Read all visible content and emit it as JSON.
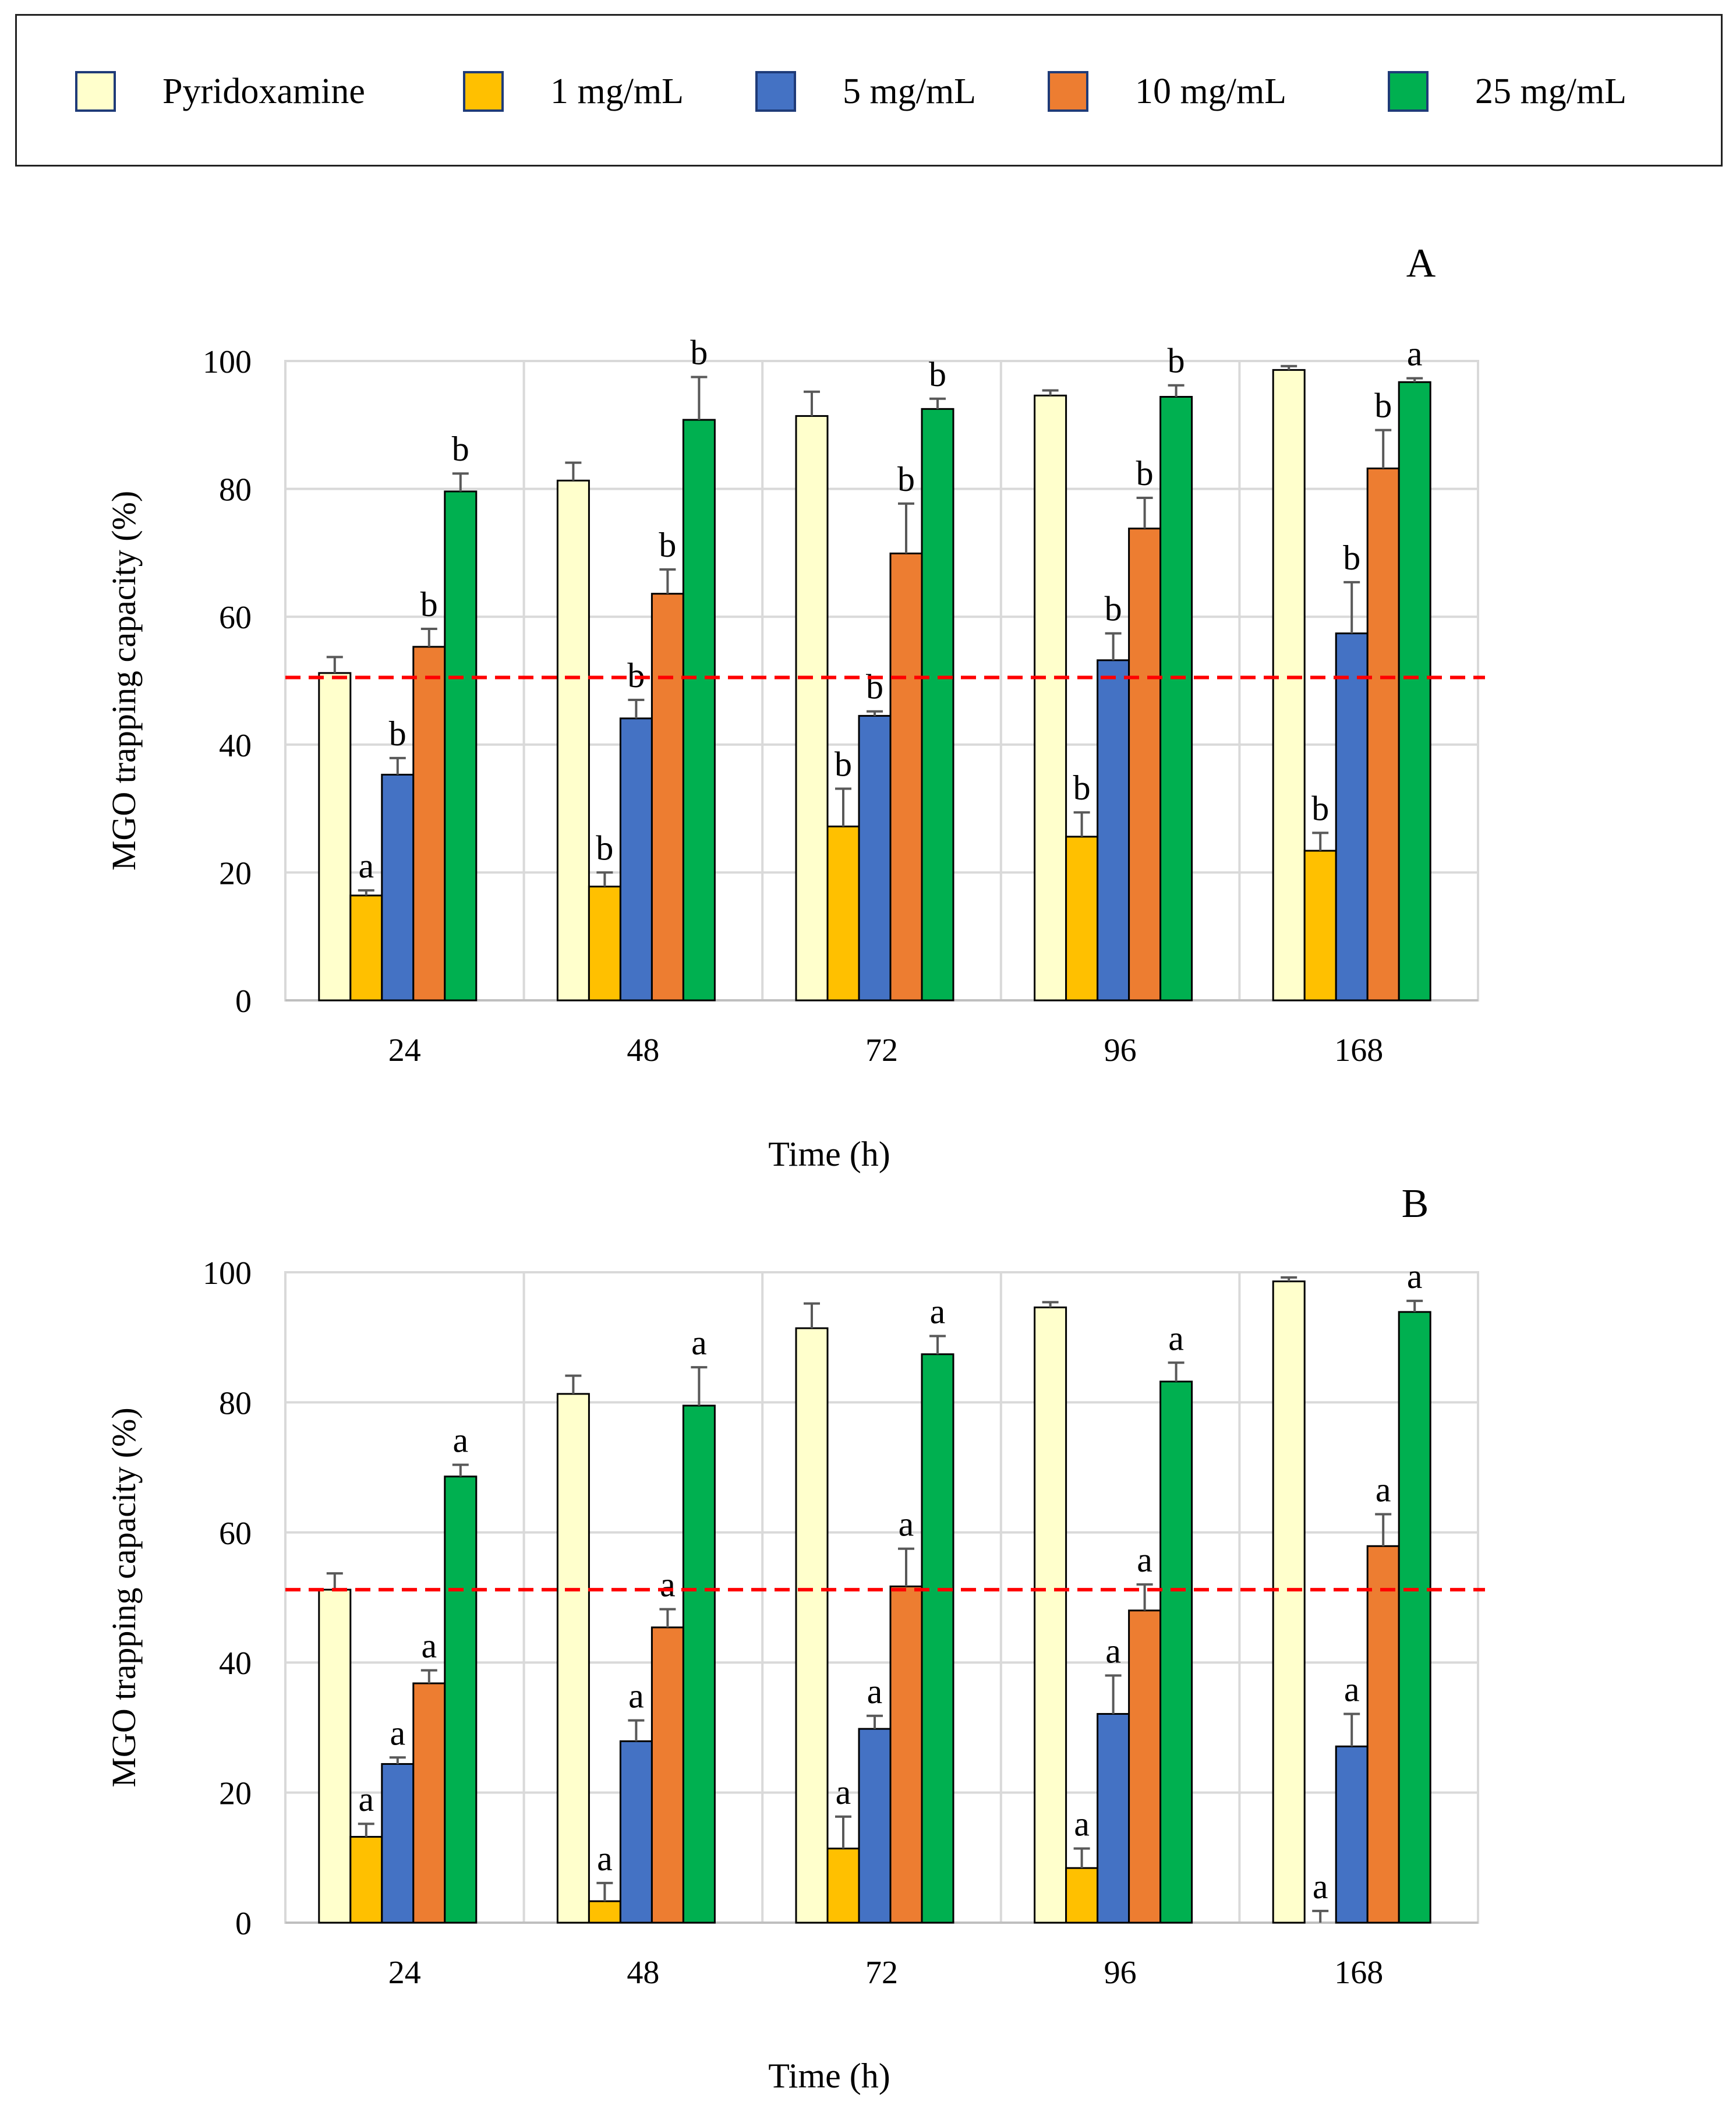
{
  "legend": {
    "items": [
      {
        "label": "Pyridoxamine",
        "color": "#FFFFCC"
      },
      {
        "label": "1 mg/mL",
        "color": "#FFC000"
      },
      {
        "label": "5 mg/mL",
        "color": "#4472C4"
      },
      {
        "label": "10 mg/mL",
        "color": "#ED7D31"
      },
      {
        "label": "25 mg/mL",
        "color": "#00B050"
      }
    ]
  },
  "reference_line": {
    "color": "#FF0000"
  },
  "chart_data": [
    {
      "type": "bar",
      "panel_label": "A",
      "categories": [
        "24",
        "48",
        "72",
        "96",
        "168"
      ],
      "xlabel": "Time (h)",
      "ylabel": "MGO trapping capacity (%)",
      "ylim": [
        0,
        100
      ],
      "yticks": [
        "0",
        "20",
        "40",
        "60",
        "80",
        "100"
      ],
      "grid": true,
      "reference_value": 50.5,
      "series": [
        {
          "name": "Pyridoxamine",
          "values": [
            51.2,
            81.3,
            91.4,
            94.6,
            98.6
          ],
          "errors": [
            2.5,
            2.8,
            3.8,
            0.8,
            0.6
          ],
          "letters": [
            "",
            "",
            "",
            "",
            ""
          ]
        },
        {
          "name": "1 mg/mL",
          "values": [
            16.4,
            17.8,
            27.2,
            25.6,
            23.4
          ],
          "errors": [
            0.8,
            2.2,
            5.9,
            3.8,
            2.8
          ],
          "letters": [
            "a",
            "b",
            "b",
            "b",
            "b"
          ]
        },
        {
          "name": "5 mg/mL",
          "values": [
            35.3,
            44.1,
            44.5,
            53.2,
            57.4
          ],
          "errors": [
            2.6,
            2.9,
            0.7,
            4.2,
            8.0
          ],
          "letters": [
            "b",
            "b",
            "b",
            "b",
            "b"
          ]
        },
        {
          "name": "10 mg/mL",
          "values": [
            55.3,
            63.6,
            69.9,
            73.8,
            83.2
          ],
          "errors": [
            2.8,
            3.8,
            7.8,
            4.8,
            6.0
          ],
          "letters": [
            "b",
            "b",
            "b",
            "b",
            "b"
          ]
        },
        {
          "name": "25 mg/mL",
          "values": [
            79.6,
            90.8,
            92.5,
            94.4,
            96.7
          ],
          "errors": [
            2.8,
            6.7,
            1.6,
            1.8,
            0.6
          ],
          "letters": [
            "b",
            "b",
            "b",
            "b",
            "a"
          ]
        }
      ]
    },
    {
      "type": "bar",
      "panel_label": "B",
      "categories": [
        "24",
        "48",
        "72",
        "96",
        "168"
      ],
      "xlabel": "Time (h)",
      "ylabel": "MGO trapping capacity (%)",
      "ylim": [
        0,
        100
      ],
      "yticks": [
        "0",
        "20",
        "40",
        "60",
        "80",
        "100"
      ],
      "grid": true,
      "reference_value": 51.2,
      "series": [
        {
          "name": "Pyridoxamine",
          "values": [
            51.2,
            81.3,
            91.4,
            94.6,
            98.6
          ],
          "errors": [
            2.5,
            2.8,
            3.8,
            0.8,
            0.6
          ],
          "letters": [
            "",
            "",
            "",
            "",
            ""
          ]
        },
        {
          "name": "1 mg/mL",
          "values": [
            13.2,
            3.3,
            11.4,
            8.4,
            0.0
          ],
          "errors": [
            2.0,
            2.8,
            4.9,
            3.0,
            1.8
          ],
          "letters": [
            "a",
            "a",
            "a",
            "a",
            "a"
          ]
        },
        {
          "name": "5 mg/mL",
          "values": [
            24.4,
            27.9,
            29.8,
            32.1,
            27.1
          ],
          "errors": [
            1.0,
            3.2,
            2.0,
            5.9,
            5.0
          ],
          "letters": [
            "a",
            "a",
            "a",
            "a",
            "a"
          ]
        },
        {
          "name": "10 mg/mL",
          "values": [
            36.8,
            45.4,
            51.7,
            48.0,
            57.9
          ],
          "errors": [
            2.0,
            2.8,
            5.8,
            4.0,
            4.9
          ],
          "letters": [
            "a",
            "a",
            "a",
            "a",
            "a"
          ]
        },
        {
          "name": "25 mg/mL",
          "values": [
            68.6,
            79.5,
            87.4,
            83.2,
            93.9
          ],
          "errors": [
            1.8,
            5.9,
            2.8,
            2.9,
            1.7
          ],
          "letters": [
            "a",
            "a",
            "a",
            "a",
            "a"
          ]
        }
      ]
    }
  ]
}
